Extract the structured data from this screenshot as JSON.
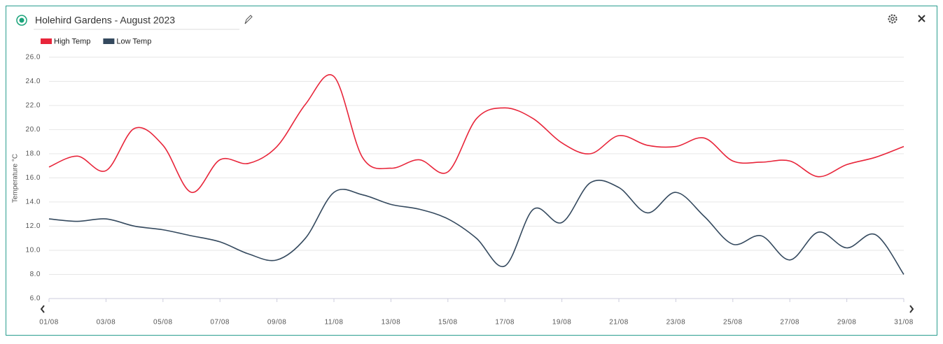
{
  "chart_data": {
    "type": "line",
    "title": "Holehird Gardens - August 2023",
    "y_label": "Temperature °C",
    "categories": [
      "01/08",
      null,
      "03/08",
      null,
      "05/08",
      null,
      "07/08",
      null,
      "09/08",
      null,
      "11/08",
      null,
      "13/08",
      null,
      "15/08",
      null,
      "17/08",
      null,
      "19/08",
      null,
      "21/08",
      null,
      "23/08",
      null,
      "25/08",
      null,
      "27/08",
      null,
      "29/08",
      null,
      "31/08"
    ],
    "series": [
      {
        "name": "High Temp",
        "color": "#e8253a",
        "values": [
          16.9,
          17.8,
          16.6,
          20.1,
          18.7,
          14.8,
          17.5,
          17.2,
          18.6,
          22.1,
          24.4,
          17.7,
          16.8,
          17.5,
          16.5,
          20.9,
          21.8,
          20.9,
          18.9,
          18.0,
          19.5,
          18.7,
          18.6,
          19.3,
          17.4,
          17.3,
          17.4,
          16.1,
          17.1,
          17.7,
          18.6
        ]
      },
      {
        "name": "Low Temp",
        "color": "#34495e",
        "values": [
          12.6,
          12.4,
          12.6,
          12.0,
          11.7,
          11.2,
          10.7,
          9.7,
          9.2,
          11.0,
          14.8,
          14.6,
          13.8,
          13.4,
          12.6,
          11.0,
          8.7,
          13.4,
          12.3,
          15.6,
          15.2,
          13.1,
          14.8,
          12.8,
          10.5,
          11.2,
          9.2,
          11.5,
          10.2,
          11.3,
          8.0
        ]
      }
    ],
    "ylim": [
      6,
      26.8
    ],
    "yticks": [
      {
        "value": 6,
        "label": "6.0"
      },
      {
        "value": 8,
        "label": "8.0"
      },
      {
        "value": 10,
        "label": "10.0"
      },
      {
        "value": 12,
        "label": "12.0"
      },
      {
        "value": 14,
        "label": "14.0"
      },
      {
        "value": 16,
        "label": "16.0"
      },
      {
        "value": 18,
        "label": "18.0"
      },
      {
        "value": 20,
        "label": "20.0"
      },
      {
        "value": 22,
        "label": "22.0"
      },
      {
        "value": 24,
        "label": "24.0"
      },
      {
        "value": 26,
        "label": "26.0"
      }
    ],
    "grid": true
  }
}
